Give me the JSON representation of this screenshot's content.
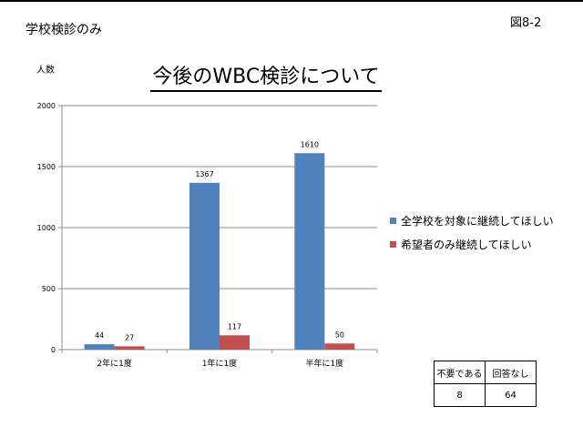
{
  "page": {
    "subtitle": "学校検診のみ",
    "figure_label": "図8-2"
  },
  "chart_data": {
    "type": "bar",
    "title": "今後のWBC検診について",
    "ylabel": "人数",
    "xlabel": "",
    "categories": [
      "2年に1度",
      "1年に1度",
      "半年に1度"
    ],
    "series": [
      {
        "name": "全学校を対象に継続してほしい",
        "values": [
          44,
          1367,
          1610
        ],
        "color": "#4F81BD"
      },
      {
        "name": "希望者のみ継続してほしい",
        "values": [
          27,
          117,
          50
        ],
        "color": "#C0504D"
      }
    ],
    "ylim": [
      0,
      2000
    ],
    "yticks": [
      0,
      500,
      1000,
      1500,
      2000
    ],
    "grid": true,
    "legend_position": "right"
  },
  "extra_table": {
    "headers": [
      "不要である",
      "回答なし"
    ],
    "values": [
      "8",
      "64"
    ]
  }
}
